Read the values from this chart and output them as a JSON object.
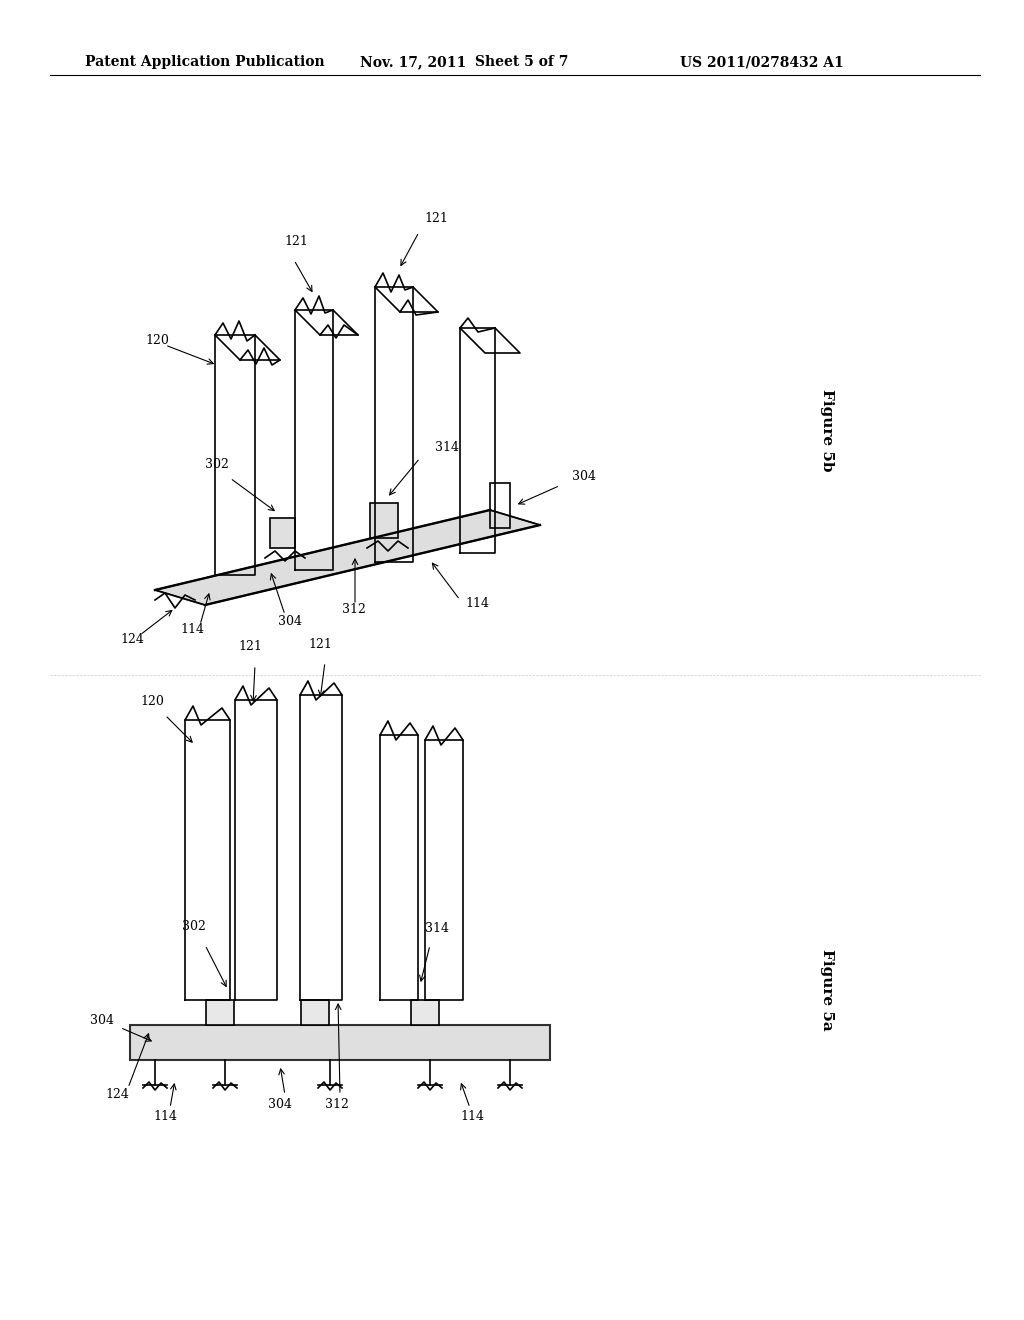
{
  "background_color": "#ffffff",
  "header_text": "Patent Application Publication",
  "header_date": "Nov. 17, 2011",
  "header_sheet": "Sheet 5 of 7",
  "header_patent": "US 2011/0278432 A1",
  "figure_5a_label": "Figure 5a",
  "figure_5b_label": "Figure 5b",
  "title_fontsize": 11,
  "label_fontsize": 10
}
